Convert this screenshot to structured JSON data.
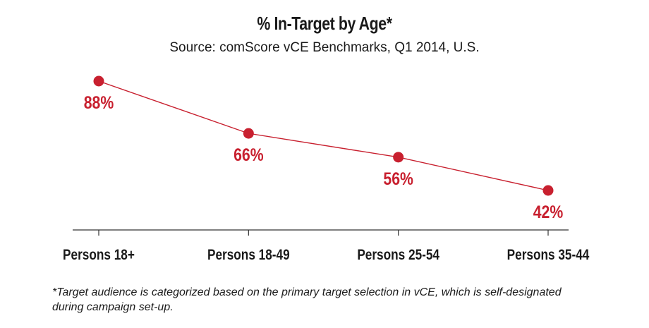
{
  "chart_data": {
    "type": "line",
    "title": "% In-Target by Age*",
    "subtitle": "Source: comScore vCE Benchmarks, Q1 2014, U.S.",
    "categories": [
      "Persons 18+",
      "Persons 18-49",
      "Persons 25-54",
      "Persons 35-44"
    ],
    "series": [
      {
        "values": [
          88,
          66,
          56,
          42
        ],
        "labels": [
          "88%",
          "66%",
          "56%",
          "42%"
        ]
      }
    ],
    "ylim": [
      0,
      100
    ],
    "grid": false,
    "legend": "none",
    "color": "#c8202f"
  },
  "footnote": "*Target audience is categorized based on the primary target selection in vCE, which is self-designated during campaign set-up."
}
